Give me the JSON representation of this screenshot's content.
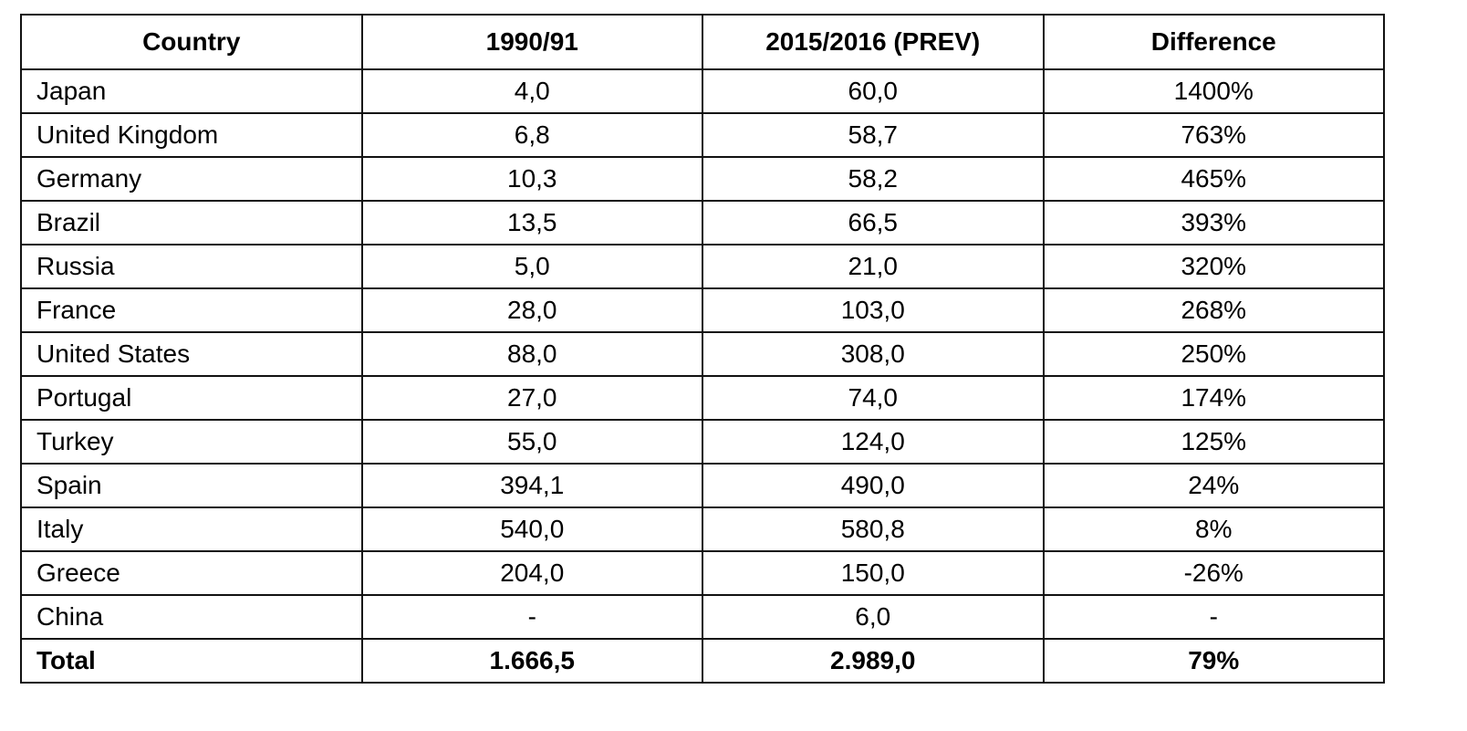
{
  "table": {
    "headers": [
      "Country",
      "1990/91",
      "2015/2016 (PREV)",
      "Difference"
    ],
    "rows": [
      [
        "Japan",
        "4,0",
        "60,0",
        "1400%"
      ],
      [
        "United Kingdom",
        "6,8",
        "58,7",
        "763%"
      ],
      [
        "Germany",
        "10,3",
        "58,2",
        "465%"
      ],
      [
        "Brazil",
        "13,5",
        "66,5",
        "393%"
      ],
      [
        "Russia",
        "5,0",
        "21,0",
        "320%"
      ],
      [
        "France",
        "28,0",
        "103,0",
        "268%"
      ],
      [
        "United States",
        "88,0",
        "308,0",
        "250%"
      ],
      [
        "Portugal",
        "27,0",
        "74,0",
        "174%"
      ],
      [
        "Turkey",
        "55,0",
        "124,0",
        "125%"
      ],
      [
        "Spain",
        "394,1",
        "490,0",
        "24%"
      ],
      [
        "Italy",
        "540,0",
        "580,8",
        "8%"
      ],
      [
        "Greece",
        "204,0",
        "150,0",
        "-26%"
      ],
      [
        "China",
        "-",
        "6,0",
        "-"
      ]
    ],
    "total": [
      "Total",
      "1.666,5",
      "2.989,0",
      "79%"
    ]
  }
}
